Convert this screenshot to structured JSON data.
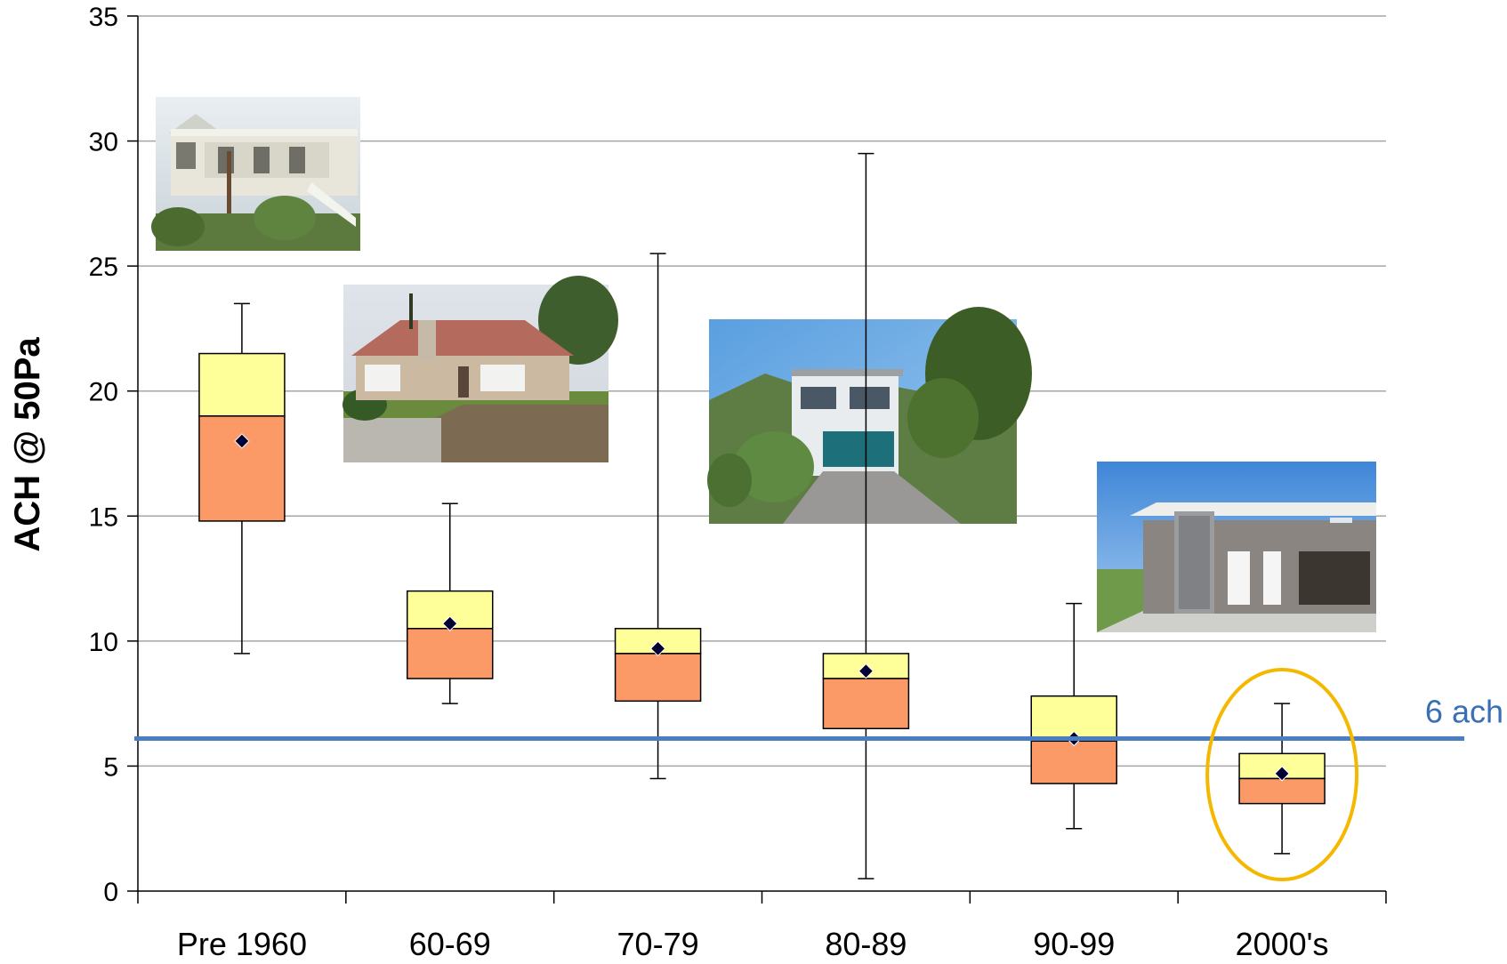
{
  "chart_data": {
    "type": "box",
    "ylabel": "ACH @ 50Pa",
    "xlabel": "",
    "ylim": [
      0,
      35
    ],
    "yticks": [
      0,
      5,
      10,
      15,
      20,
      25,
      30,
      35
    ],
    "grid": true,
    "categories": [
      "Pre 1960",
      "60-69",
      "70-79",
      "80-89",
      "90-99",
      "2000's"
    ],
    "boxes": [
      {
        "category": "Pre 1960",
        "min": 9.5,
        "q1": 14.8,
        "median": 19.0,
        "q3": 21.5,
        "max": 23.5,
        "mean": 18.0
      },
      {
        "category": "60-69",
        "min": 7.5,
        "q1": 8.5,
        "median": 10.5,
        "q3": 12.0,
        "max": 15.5,
        "mean": 10.7
      },
      {
        "category": "70-79",
        "min": 4.5,
        "q1": 7.6,
        "median": 9.5,
        "q3": 10.5,
        "max": 25.5,
        "mean": 9.7
      },
      {
        "category": "80-89",
        "min": 0.5,
        "q1": 6.5,
        "median": 8.5,
        "q3": 9.5,
        "max": 29.5,
        "mean": 8.8
      },
      {
        "category": "90-99",
        "min": 2.5,
        "q1": 4.3,
        "median": 6.0,
        "q3": 7.8,
        "max": 11.5,
        "mean": 6.1
      },
      {
        "category": "2000's",
        "min": 1.5,
        "q1": 3.5,
        "median": 4.5,
        "q3": 5.5,
        "max": 7.5,
        "mean": 4.7
      }
    ],
    "reference_line": {
      "value": 6.1,
      "label": "6 ach",
      "color": "#4a7ec2"
    },
    "highlight": {
      "category": "2000's",
      "color": "#f5b800"
    },
    "colors": {
      "upper_box": "#ffff99",
      "lower_box": "#fb9a66",
      "mean_marker": "#000033",
      "grid": "#a6a6a6"
    },
    "images": [
      {
        "name": "pre-1960-house-photo",
        "era": "Pre 1960"
      },
      {
        "name": "60s-house-photo",
        "era": "60-69"
      },
      {
        "name": "80s-house-photo",
        "era": "80-89"
      },
      {
        "name": "2000s-house-photo",
        "era": "2000's"
      }
    ]
  }
}
